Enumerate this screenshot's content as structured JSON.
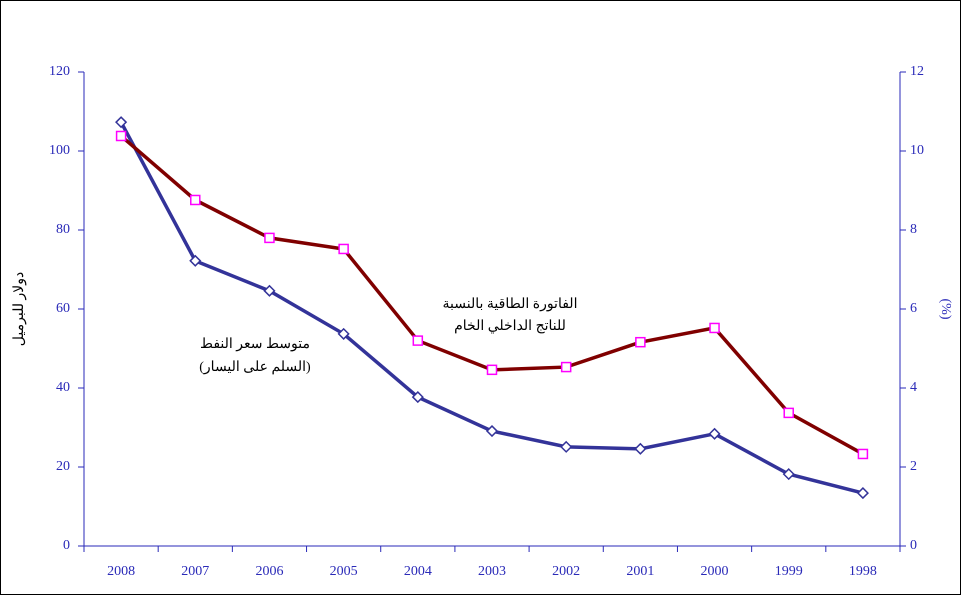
{
  "chart_data": {
    "type": "line",
    "categories": [
      "2008",
      "2007",
      "2006",
      "2005",
      "2004",
      "2003",
      "2002",
      "2001",
      "2000",
      "1999",
      "1998"
    ],
    "series": [
      {
        "color": "#333399",
        "marker": "diamond",
        "values": [
          107.3,
          72.2,
          64.6,
          53.7,
          37.7,
          29.1,
          25.1,
          24.6,
          28.4,
          18.2,
          13.4
        ]
      },
      {
        "color": "#800000",
        "marker": "square",
        "marker_color": "#ff00ff",
        "axis": "y2",
        "values": [
          10.38,
          8.76,
          7.8,
          7.52,
          5.2,
          4.46,
          4.53,
          5.16,
          5.52,
          3.37,
          2.33
        ]
      }
    ],
    "y_label": "دولار للبرميل",
    "y2_label": "(%)",
    "ylim": [
      0,
      120
    ],
    "yticks": [
      0,
      20,
      40,
      60,
      80,
      100,
      120
    ],
    "y2lim": [
      0,
      12
    ],
    "y2ticks": [
      0,
      2,
      4,
      6,
      8,
      10,
      12
    ],
    "annotations": [
      "متوسط سعر النفط",
      "(السلم على اليسار)",
      "الفاتورة الطاقية بالنسبة",
      "للناتج الداخلي الخام"
    ]
  }
}
